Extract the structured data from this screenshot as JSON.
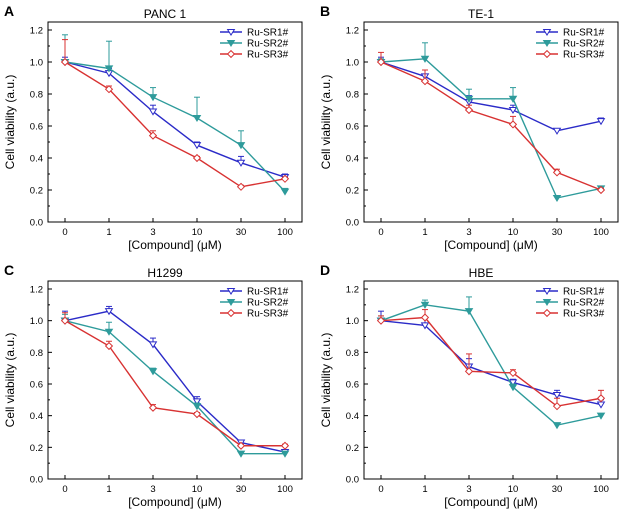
{
  "colors": {
    "Ru-SR1#": "#2b2bc8",
    "Ru-SR2#": "#2e9b9b",
    "Ru-SR3#": "#d83232"
  },
  "chart_data": [
    {
      "panel": "A",
      "title": "PANC 1",
      "type": "line",
      "xlabel": "[Compound] (μM)",
      "ylabel": "Cell viability (a.u.)",
      "categories": [
        "0",
        "1",
        "3",
        "10",
        "30",
        "100"
      ],
      "ylim": [
        0,
        1.2
      ],
      "yticks": [
        "0.0",
        "0.2",
        "0.4",
        "0.6",
        "0.8",
        "1.0",
        "1.2"
      ],
      "legend_position": "top-right",
      "series": [
        {
          "name": "Ru-SR1#",
          "values": [
            1.0,
            0.93,
            0.69,
            0.48,
            0.37,
            0.28
          ],
          "errors": [
            0.03,
            0.03,
            0.04,
            0.02,
            0.04,
            0.02
          ]
        },
        {
          "name": "Ru-SR2#",
          "values": [
            1.0,
            0.96,
            0.78,
            0.65,
            0.48,
            0.19
          ],
          "errors": [
            0.17,
            0.17,
            0.06,
            0.13,
            0.09,
            0.02
          ]
        },
        {
          "name": "Ru-SR3#",
          "values": [
            1.0,
            0.83,
            0.54,
            0.4,
            0.22,
            0.27
          ],
          "errors": [
            0.14,
            0.02,
            0.03,
            0.01,
            0.01,
            0.01
          ]
        }
      ]
    },
    {
      "panel": "B",
      "title": "TE-1",
      "type": "line",
      "xlabel": "[Compound] (μM)",
      "ylabel": "Cell viability (a.u.)",
      "categories": [
        "0",
        "1",
        "3",
        "10",
        "30",
        "100"
      ],
      "ylim": [
        0,
        1.2
      ],
      "yticks": [
        "0.0",
        "0.2",
        "0.4",
        "0.6",
        "0.8",
        "1.0",
        "1.2"
      ],
      "legend_position": "top-right",
      "series": [
        {
          "name": "Ru-SR1#",
          "values": [
            1.0,
            0.91,
            0.75,
            0.7,
            0.57,
            0.63
          ],
          "errors": [
            0.03,
            0.04,
            0.04,
            0.03,
            0.01,
            0.02
          ]
        },
        {
          "name": "Ru-SR2#",
          "values": [
            1.0,
            1.02,
            0.77,
            0.77,
            0.15,
            0.21
          ],
          "errors": [
            0.02,
            0.1,
            0.06,
            0.07,
            0.01,
            0.01
          ]
        },
        {
          "name": "Ru-SR3#",
          "values": [
            1.0,
            0.88,
            0.7,
            0.61,
            0.31,
            0.2
          ],
          "errors": [
            0.06,
            0.07,
            0.03,
            0.05,
            0.02,
            0.01
          ]
        }
      ]
    },
    {
      "panel": "C",
      "title": "H1299",
      "type": "line",
      "xlabel": "[Compound] (μM)",
      "ylabel": "Cell viability (a.u.)",
      "categories": [
        "0",
        "1",
        "3",
        "10",
        "30",
        "100"
      ],
      "ylim": [
        0,
        1.2
      ],
      "yticks": [
        "0.0",
        "0.2",
        "0.4",
        "0.6",
        "0.8",
        "1.0",
        "1.2"
      ],
      "legend_position": "top-right",
      "series": [
        {
          "name": "Ru-SR1#",
          "values": [
            1.0,
            1.06,
            0.85,
            0.49,
            0.23,
            0.17
          ],
          "errors": [
            0.06,
            0.03,
            0.04,
            0.03,
            0.01,
            0.01
          ]
        },
        {
          "name": "Ru-SR2#",
          "values": [
            1.0,
            0.93,
            0.68,
            0.46,
            0.16,
            0.16
          ],
          "errors": [
            0.04,
            0.06,
            0.02,
            0.02,
            0.01,
            0.01
          ]
        },
        {
          "name": "Ru-SR3#",
          "values": [
            1.0,
            0.84,
            0.45,
            0.41,
            0.21,
            0.21
          ],
          "errors": [
            0.05,
            0.03,
            0.02,
            0.01,
            0.01,
            0.01
          ]
        }
      ]
    },
    {
      "panel": "D",
      "title": "HBE",
      "type": "line",
      "xlabel": "[Compound] (μM)",
      "ylabel": "Cell viability (a.u.)",
      "categories": [
        "0",
        "1",
        "3",
        "10",
        "30",
        "100"
      ],
      "ylim": [
        0,
        1.2
      ],
      "yticks": [
        "0.0",
        "0.2",
        "0.4",
        "0.6",
        "0.8",
        "1.0",
        "1.2"
      ],
      "legend_position": "top-right",
      "series": [
        {
          "name": "Ru-SR1#",
          "values": [
            1.0,
            0.97,
            0.71,
            0.61,
            0.53,
            0.47
          ],
          "errors": [
            0.06,
            0.05,
            0.05,
            0.02,
            0.03,
            0.03
          ]
        },
        {
          "name": "Ru-SR2#",
          "values": [
            1.0,
            1.1,
            1.06,
            0.58,
            0.34,
            0.4
          ],
          "errors": [
            0.03,
            0.03,
            0.09,
            0.02,
            0.01,
            0.01
          ]
        },
        {
          "name": "Ru-SR3#",
          "values": [
            1.0,
            1.02,
            0.68,
            0.67,
            0.46,
            0.51
          ],
          "errors": [
            0.03,
            0.05,
            0.11,
            0.02,
            0.05,
            0.05
          ]
        }
      ]
    }
  ]
}
